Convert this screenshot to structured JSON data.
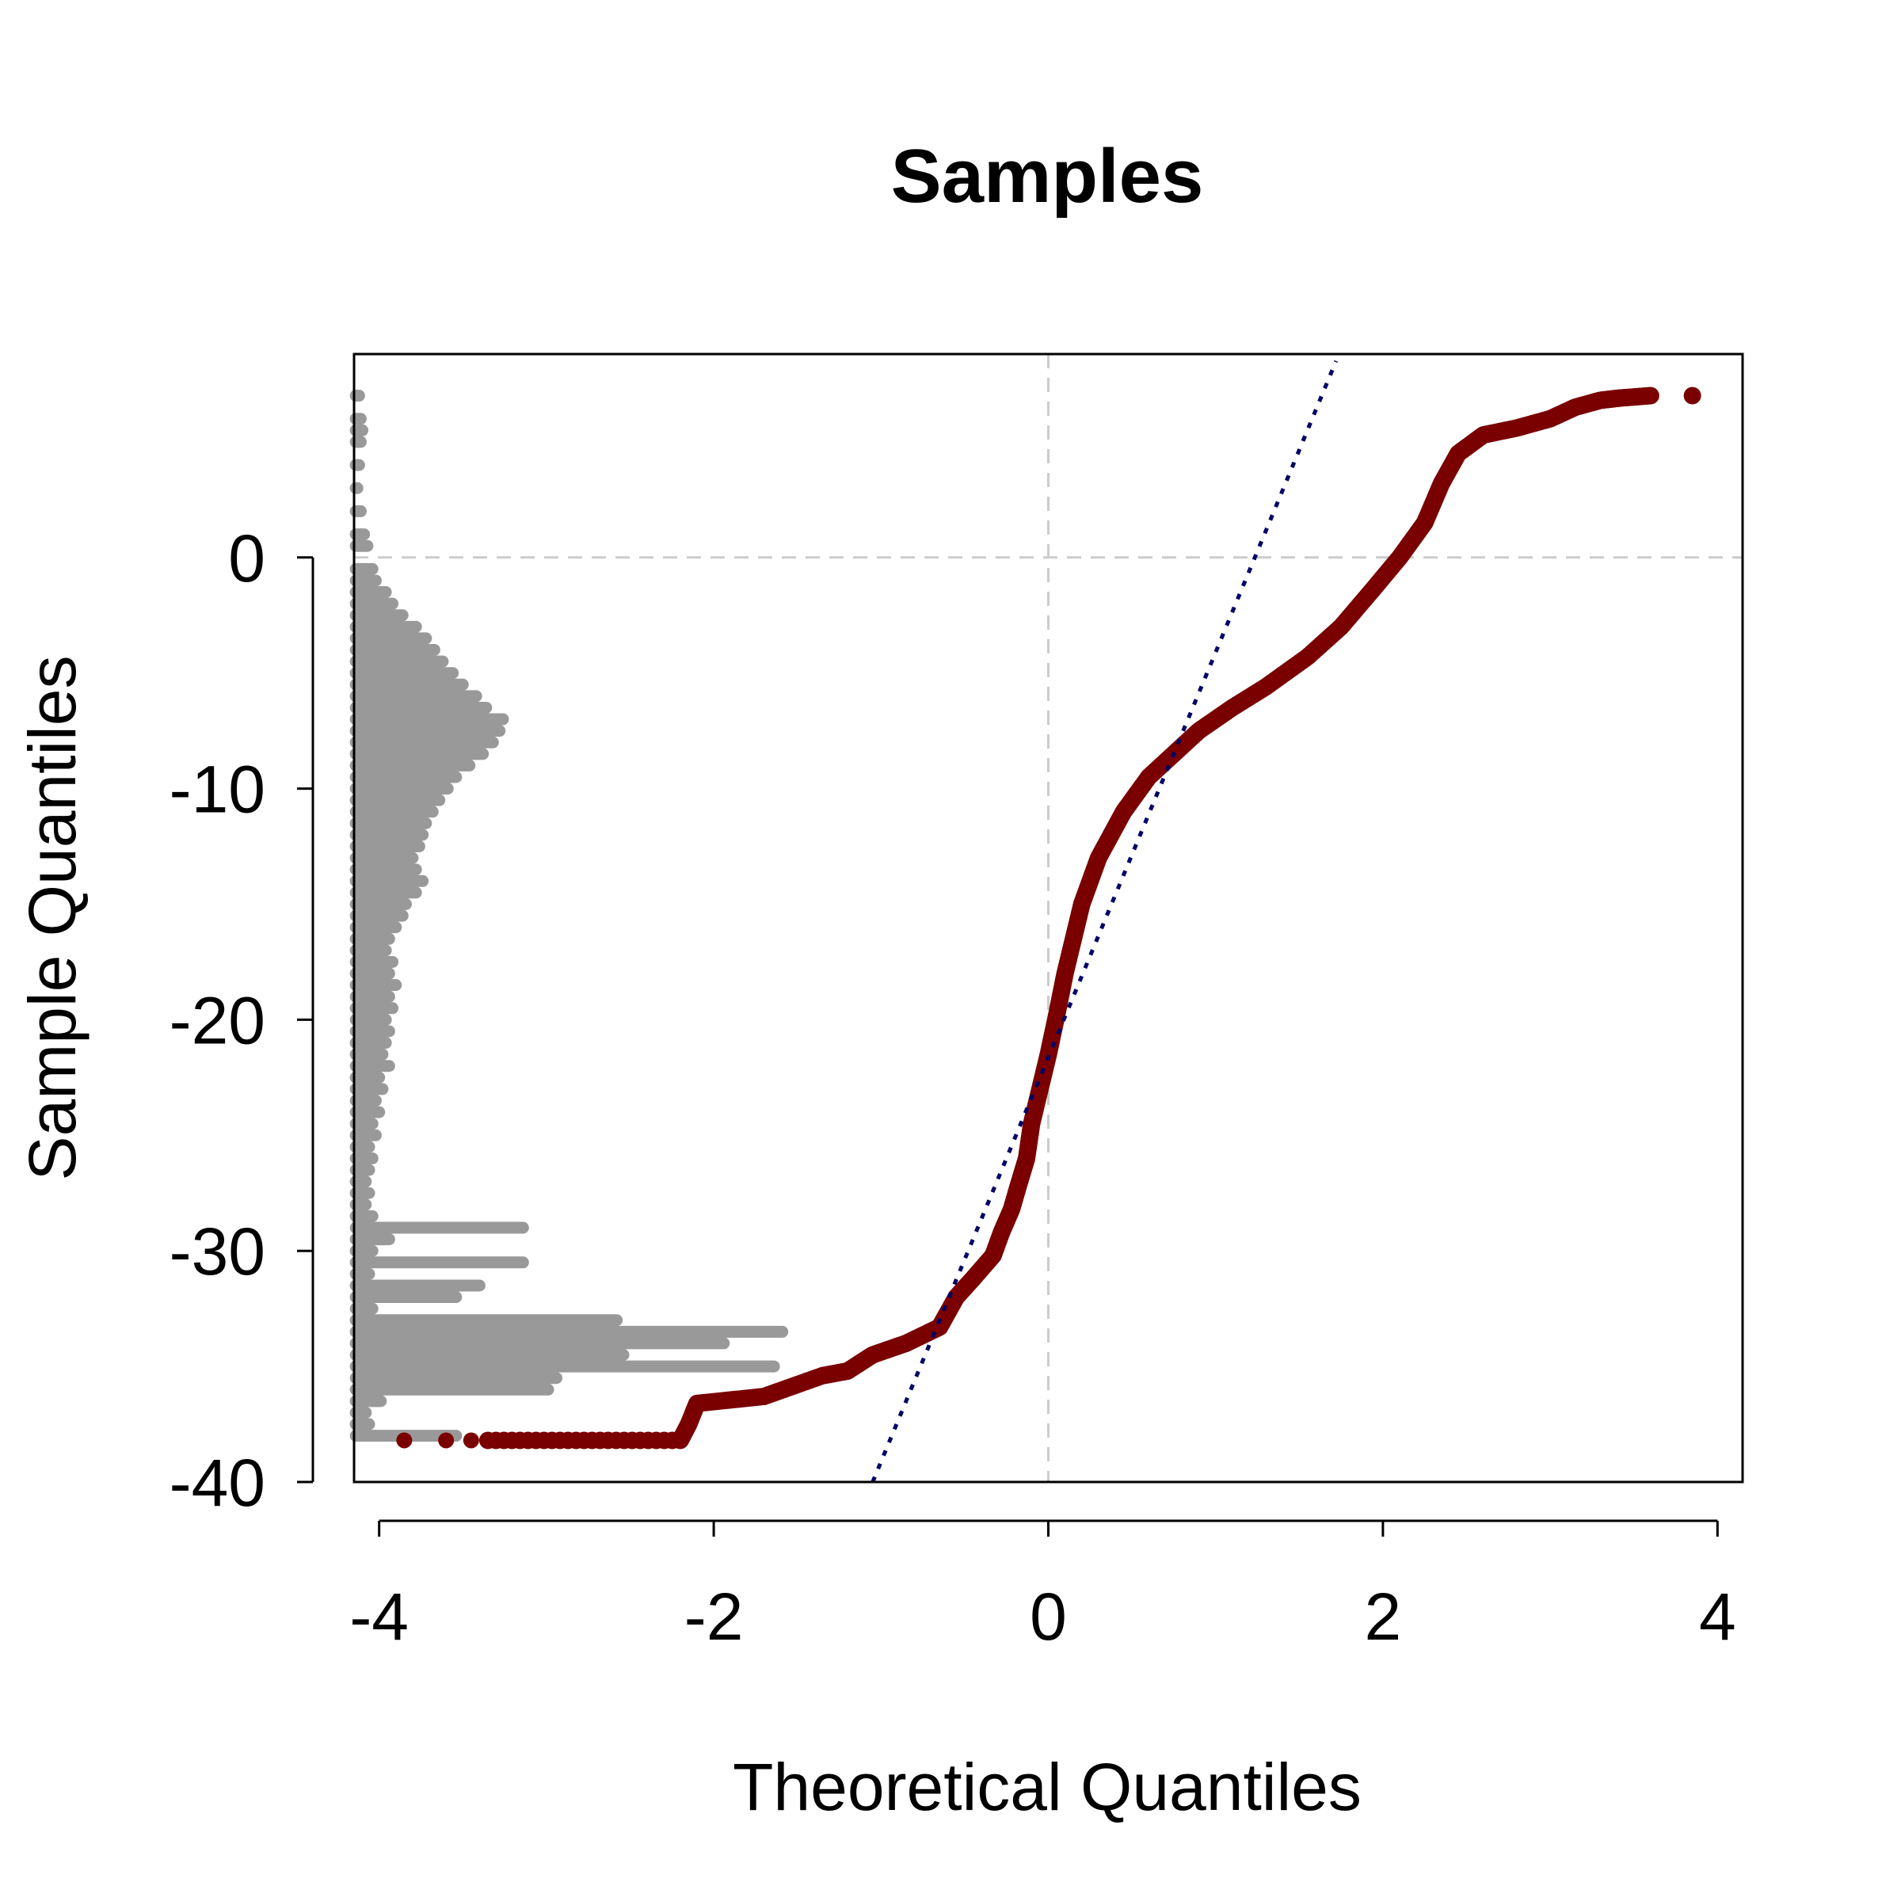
{
  "chart_data": {
    "type": "scatter",
    "title": "Samples",
    "xlabel": "Theoretical Quantiles",
    "ylabel": "Sample Quantiles",
    "xlim": [
      -4.15,
      4.15
    ],
    "ylim": [
      -40,
      8.8
    ],
    "xticks": [
      -4,
      -2,
      0,
      2,
      4
    ],
    "xtick_labels": [
      "-4",
      "-2",
      "0",
      "2",
      "4"
    ],
    "yticks": [
      0,
      -10,
      -20,
      -30,
      -40
    ],
    "ytick_labels": [
      "0",
      "-10",
      "-20",
      "-30",
      "-40"
    ],
    "reference_lines": {
      "x": 0,
      "y": 0,
      "style": "dashed",
      "color": "#cccccc"
    },
    "qq_line": {
      "x": [
        -1.05,
        1.72
      ],
      "y": [
        -40,
        8.5
      ],
      "color": "#000066",
      "style": "dotted"
    },
    "colors": {
      "points": "#7a0000",
      "histogram": "#999999"
    },
    "qq_curve": {
      "x": [
        -3.85,
        -3.6,
        -3.45,
        -3.35,
        -2.2,
        -2.15,
        -2.1,
        -1.7,
        -1.35,
        -1.2,
        -1.05,
        -0.85,
        -0.65,
        -0.55,
        -0.45,
        -0.33,
        -0.28,
        -0.22,
        -0.18,
        -0.13,
        -0.1,
        -0.05,
        0.0,
        0.05,
        0.1,
        0.2,
        0.3,
        0.45,
        0.6,
        0.75,
        0.9,
        1.1,
        1.3,
        1.55,
        1.75,
        1.95,
        2.1,
        2.25,
        2.35,
        2.45,
        2.6,
        2.8,
        3.0,
        3.15,
        3.3,
        3.42,
        3.6,
        3.85
      ],
      "y": [
        -38.2,
        -38.2,
        -38.2,
        -38.2,
        -38.2,
        -37.5,
        -36.6,
        -36.3,
        -35.4,
        -35.2,
        -34.5,
        -34.0,
        -33.3,
        -32.0,
        -31.2,
        -30.2,
        -29.2,
        -28.2,
        -27.2,
        -26.0,
        -24.5,
        -23.0,
        -21.5,
        -19.8,
        -18.0,
        -15.0,
        -13.0,
        -11.0,
        -9.5,
        -8.5,
        -7.5,
        -6.5,
        -5.6,
        -4.3,
        -3.0,
        -1.3,
        0.0,
        1.5,
        3.2,
        4.5,
        5.3,
        5.6,
        6.0,
        6.5,
        6.8,
        6.9,
        7.0,
        7.0
      ]
    },
    "histogram": {
      "bin_centers": [
        7.0,
        6.0,
        5.5,
        5.0,
        4.0,
        3.0,
        2.0,
        1.0,
        0.5,
        -0.5,
        -1.0,
        -1.5,
        -2.0,
        -2.5,
        -3.0,
        -3.5,
        -4.0,
        -4.5,
        -5.0,
        -5.5,
        -6.0,
        -6.5,
        -7.0,
        -7.5,
        -8.0,
        -8.5,
        -9.0,
        -9.5,
        -10.0,
        -10.5,
        -11.0,
        -11.5,
        -12.0,
        -12.5,
        -13.0,
        -13.5,
        -14.0,
        -14.5,
        -15.0,
        -15.5,
        -16.0,
        -16.5,
        -17.0,
        -17.5,
        -18.0,
        -18.5,
        -19.0,
        -19.5,
        -20.0,
        -20.5,
        -21.0,
        -21.5,
        -22.0,
        -22.5,
        -23.0,
        -23.5,
        -24.0,
        -24.5,
        -25.0,
        -25.5,
        -26.0,
        -26.5,
        -27.0,
        -27.5,
        -28.0,
        -28.5,
        -29.0,
        -29.5,
        -30.0,
        -30.5,
        -31.0,
        -31.5,
        -32.0,
        -32.5,
        -33.0,
        -33.5,
        -34.0,
        -34.5,
        -35.0,
        -35.5,
        -36.0,
        -36.5,
        -37.0,
        -37.5,
        -38.0
      ],
      "extent": [
        0.02,
        0.03,
        0.04,
        0.03,
        0.02,
        0.01,
        0.03,
        0.05,
        0.07,
        0.1,
        0.12,
        0.18,
        0.22,
        0.28,
        0.36,
        0.42,
        0.47,
        0.52,
        0.58,
        0.64,
        0.72,
        0.78,
        0.88,
        0.86,
        0.82,
        0.76,
        0.68,
        0.6,
        0.55,
        0.5,
        0.46,
        0.42,
        0.4,
        0.38,
        0.34,
        0.36,
        0.4,
        0.36,
        0.3,
        0.28,
        0.24,
        0.2,
        0.18,
        0.22,
        0.2,
        0.24,
        0.2,
        0.22,
        0.18,
        0.2,
        0.18,
        0.16,
        0.2,
        0.14,
        0.16,
        0.12,
        0.14,
        0.1,
        0.12,
        0.08,
        0.1,
        0.08,
        0.06,
        0.08,
        0.06,
        0.1,
        1.0,
        0.2,
        0.1,
        1.0,
        0.08,
        0.74,
        0.6,
        0.1,
        1.56,
        2.55,
        2.2,
        1.6,
        2.5,
        1.2,
        1.15,
        0.15,
        0.06,
        0.08,
        0.6
      ]
    }
  }
}
